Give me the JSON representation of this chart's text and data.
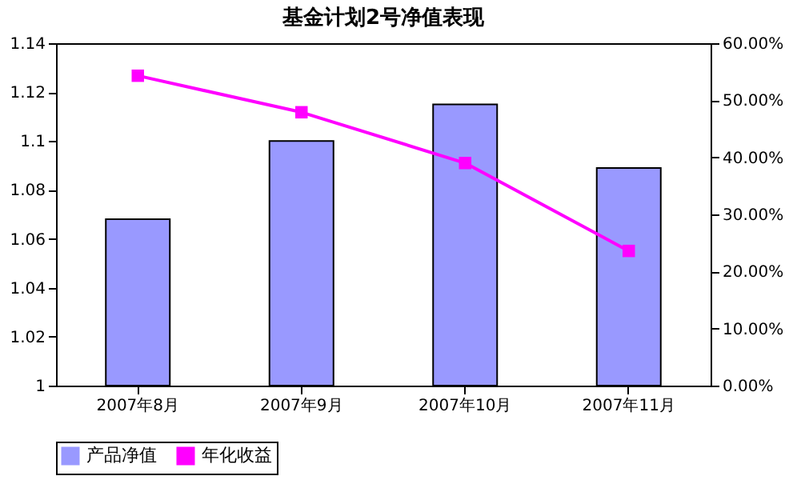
{
  "chart_data": {
    "type": "bar",
    "title": "基金计划2号净值表现",
    "categories": [
      "2007年8月",
      "2007年9月",
      "2007年10月",
      "2007年11月"
    ],
    "series": [
      {
        "name": "产品净值",
        "color": "#9999ff",
        "values": [
          1.068,
          1.1,
          1.115,
          1.089
        ]
      },
      {
        "name": "年化收益",
        "type": "line",
        "axis": "y2",
        "color": "#ff00ff",
        "marker": "square",
        "values": [
          54.3,
          47.9,
          39.0,
          23.6
        ]
      }
    ],
    "ylim": [
      1,
      1.14
    ],
    "yticks": [
      1,
      1.02,
      1.04,
      1.06,
      1.08,
      1.1,
      1.12,
      1.14
    ],
    "y2lim": [
      0,
      60
    ],
    "y2ticks": [
      {
        "value": 0,
        "label": "0.00%"
      },
      {
        "value": 10,
        "label": "10.00%"
      },
      {
        "value": 20,
        "label": "20.00%"
      },
      {
        "value": 30,
        "label": "30.00%"
      },
      {
        "value": 40,
        "label": "40.00%"
      },
      {
        "value": 50,
        "label": "50.00%"
      },
      {
        "value": 60,
        "label": "60.00%"
      }
    ],
    "grid": false,
    "legend": "bottom"
  }
}
